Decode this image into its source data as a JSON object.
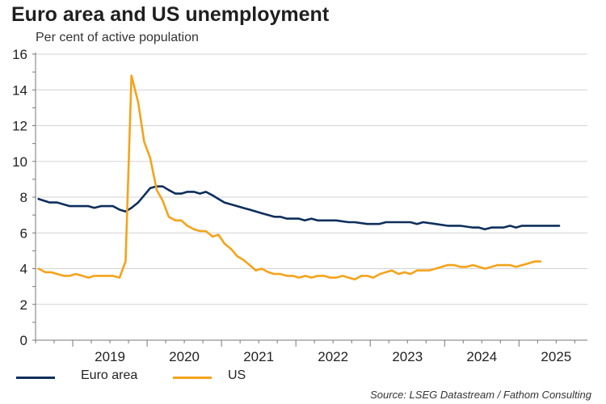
{
  "chart_data": {
    "type": "line",
    "title": "Euro area and US unemployment",
    "subtitle": "Per cent of active population",
    "source": "Source: LSEG Datastream / Fathom Consulting",
    "ylabel": "Per cent of active population",
    "ylim": [
      0,
      16
    ],
    "y_ticks": [
      "0",
      "2",
      "4",
      "6",
      "8",
      "10",
      "12",
      "14",
      "16"
    ],
    "x_range": [
      2018.5,
      2025.92
    ],
    "x_tick_labels": [
      "2019",
      "2020",
      "2021",
      "2022",
      "2023",
      "2024",
      "2025"
    ],
    "grid": "horizontal",
    "legend_position": "bottom-left",
    "series": [
      {
        "name": "Euro area",
        "color": "#0d2f5c",
        "x": [
          2018.54,
          2018.69,
          2018.79,
          2018.96,
          2019.04,
          2019.21,
          2019.29,
          2019.38,
          2019.46,
          2019.54,
          2019.63,
          2019.71,
          2019.79,
          2019.88,
          2019.96,
          2020.04,
          2020.12,
          2020.21,
          2020.29,
          2020.38,
          2020.46,
          2020.54,
          2020.63,
          2020.71,
          2020.79,
          2020.88,
          2020.96,
          2021.04,
          2021.21,
          2021.29,
          2021.38,
          2021.54,
          2021.71,
          2021.79,
          2021.88,
          2022.04,
          2022.12,
          2022.21,
          2022.29,
          2022.38,
          2022.54,
          2022.71,
          2022.79,
          2022.96,
          2023.12,
          2023.21,
          2023.38,
          2023.46,
          2023.54,
          2023.63,
          2023.71,
          2023.88,
          2024.04,
          2024.21,
          2024.38,
          2024.46,
          2024.54,
          2024.63,
          2024.79,
          2024.88,
          2024.96,
          2025.04,
          2025.21,
          2025.38,
          2025.54
        ],
        "values": [
          7.9,
          7.7,
          7.7,
          7.5,
          7.5,
          7.5,
          7.4,
          7.5,
          7.5,
          7.5,
          7.3,
          7.2,
          7.4,
          7.7,
          8.1,
          8.5,
          8.6,
          8.6,
          8.4,
          8.2,
          8.2,
          8.3,
          8.3,
          8.2,
          8.3,
          8.1,
          7.9,
          7.7,
          7.5,
          7.4,
          7.3,
          7.1,
          6.9,
          6.9,
          6.8,
          6.8,
          6.7,
          6.8,
          6.7,
          6.7,
          6.7,
          6.6,
          6.6,
          6.5,
          6.5,
          6.6,
          6.6,
          6.6,
          6.6,
          6.5,
          6.6,
          6.5,
          6.4,
          6.4,
          6.3,
          6.3,
          6.2,
          6.3,
          6.3,
          6.4,
          6.3,
          6.4,
          6.4,
          6.4,
          6.4
        ]
      },
      {
        "name": "US",
        "color": "#f5a31a",
        "x": [
          2018.54,
          2018.63,
          2018.71,
          2018.79,
          2018.88,
          2018.96,
          2019.04,
          2019.13,
          2019.21,
          2019.29,
          2019.38,
          2019.46,
          2019.54,
          2019.63,
          2019.71,
          2019.79,
          2019.88,
          2019.96,
          2020.04,
          2020.13,
          2020.21,
          2020.29,
          2020.38,
          2020.46,
          2020.54,
          2020.63,
          2020.71,
          2020.79,
          2020.88,
          2020.96,
          2021.04,
          2021.13,
          2021.21,
          2021.29,
          2021.38,
          2021.46,
          2021.54,
          2021.63,
          2021.71,
          2021.79,
          2021.88,
          2021.96,
          2022.04,
          2022.13,
          2022.21,
          2022.29,
          2022.38,
          2022.46,
          2022.54,
          2022.63,
          2022.71,
          2022.79,
          2022.88,
          2022.96,
          2023.04,
          2023.13,
          2023.21,
          2023.29,
          2023.38,
          2023.46,
          2023.54,
          2023.63,
          2023.71,
          2023.79,
          2023.88,
          2023.96,
          2024.04,
          2024.13,
          2024.21,
          2024.29,
          2024.38,
          2024.46,
          2024.54,
          2024.63,
          2024.71,
          2024.79,
          2024.88,
          2024.96,
          2025.04,
          2025.13,
          2025.21,
          2025.29
        ],
        "values": [
          4.0,
          3.8,
          3.8,
          3.7,
          3.6,
          3.6,
          3.7,
          3.6,
          3.5,
          3.6,
          3.6,
          3.6,
          3.6,
          3.5,
          4.4,
          14.8,
          13.3,
          11.1,
          10.2,
          8.4,
          7.8,
          6.9,
          6.7,
          6.7,
          6.4,
          6.2,
          6.1,
          6.1,
          5.8,
          5.9,
          5.4,
          5.1,
          4.7,
          4.5,
          4.2,
          3.9,
          4.0,
          3.8,
          3.7,
          3.7,
          3.6,
          3.6,
          3.5,
          3.6,
          3.5,
          3.6,
          3.6,
          3.5,
          3.5,
          3.6,
          3.5,
          3.4,
          3.6,
          3.6,
          3.5,
          3.7,
          3.8,
          3.9,
          3.7,
          3.8,
          3.7,
          3.9,
          3.9,
          3.9,
          4.0,
          4.1,
          4.2,
          4.2,
          4.1,
          4.1,
          4.2,
          4.1,
          4.0,
          4.1,
          4.2,
          4.2,
          4.2,
          4.1,
          4.2,
          4.3,
          4.4,
          4.4
        ]
      }
    ]
  }
}
